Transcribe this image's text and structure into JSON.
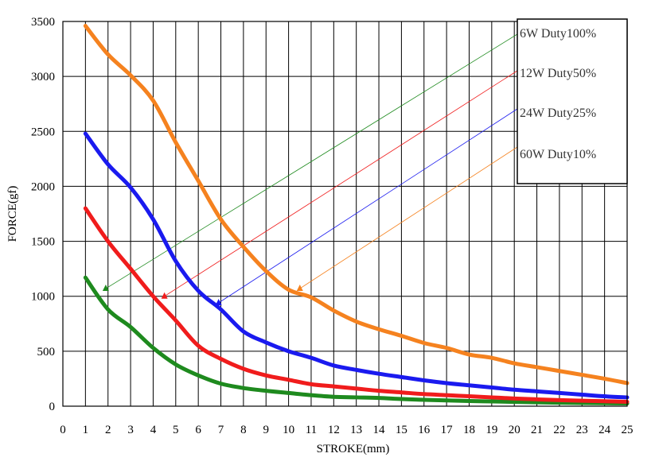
{
  "chart_data": {
    "type": "line",
    "xlabel": "STROKE(mm)",
    "ylabel": "FORCE(gf)",
    "xlim": [
      0,
      25
    ],
    "ylim": [
      0,
      3500
    ],
    "x_ticks": [
      "0",
      "1",
      "2",
      "3",
      "4",
      "5",
      "6",
      "7",
      "8",
      "9",
      "10",
      "11",
      "12",
      "13",
      "14",
      "15",
      "16",
      "17",
      "18",
      "19",
      "20",
      "21",
      "22",
      "23",
      "24",
      "25"
    ],
    "y_ticks": [
      "0",
      "500",
      "1000",
      "1500",
      "2000",
      "2500",
      "3000",
      "3500"
    ],
    "grid": true,
    "legend_position": "top-right",
    "series": [
      {
        "name": "6W Duty100%",
        "color": "#1e8a1e",
        "x": [
          1,
          2,
          3,
          4,
          5,
          6,
          7,
          8,
          9,
          10,
          11,
          12,
          13,
          14,
          15,
          16,
          17,
          18,
          19,
          20,
          21,
          22,
          23,
          24,
          25
        ],
        "y": [
          1170,
          880,
          720,
          530,
          380,
          280,
          205,
          165,
          140,
          120,
          100,
          85,
          80,
          75,
          65,
          58,
          52,
          47,
          43,
          39,
          35,
          32,
          29,
          27,
          25
        ]
      },
      {
        "name": "12W Duty50%",
        "color": "#f01c1c",
        "x": [
          1,
          2,
          3,
          4,
          5,
          6,
          7,
          8,
          9,
          10,
          11,
          12,
          13,
          14,
          15,
          16,
          17,
          18,
          19,
          20,
          21,
          22,
          23,
          24,
          25
        ],
        "y": [
          1800,
          1500,
          1250,
          1000,
          780,
          550,
          430,
          340,
          280,
          240,
          200,
          180,
          160,
          140,
          125,
          110,
          100,
          90,
          80,
          70,
          62,
          55,
          50,
          45,
          40
        ]
      },
      {
        "name": "24W Duty25%",
        "color": "#1a1aef",
        "x": [
          1,
          2,
          3,
          4,
          5,
          6,
          7,
          8,
          9,
          10,
          11,
          12,
          13,
          14,
          15,
          16,
          17,
          18,
          19,
          20,
          21,
          22,
          23,
          24,
          25
        ],
        "y": [
          2480,
          2200,
          1990,
          1700,
          1320,
          1050,
          880,
          680,
          580,
          500,
          440,
          370,
          330,
          295,
          265,
          235,
          210,
          190,
          170,
          150,
          135,
          120,
          105,
          90,
          80
        ]
      },
      {
        "name": "60W Duty10%",
        "color": "#f5821f",
        "x": [
          1,
          2,
          3,
          4,
          5,
          6,
          7,
          8,
          9,
          10,
          11,
          12,
          13,
          14,
          15,
          16,
          17,
          18,
          19,
          20,
          21,
          22,
          23,
          24,
          25
        ],
        "y": [
          3460,
          3200,
          3010,
          2780,
          2400,
          2050,
          1700,
          1450,
          1230,
          1060,
          990,
          870,
          770,
          700,
          640,
          575,
          530,
          470,
          440,
          390,
          355,
          320,
          285,
          250,
          210
        ]
      }
    ],
    "annotations": [
      {
        "series": 0,
        "at": [
          1.9,
          1070
        ]
      },
      {
        "series": 1,
        "at": [
          4.5,
          1000
        ]
      },
      {
        "series": 2,
        "at": [
          6.9,
          940
        ]
      },
      {
        "series": 3,
        "at": [
          10.5,
          1070
        ]
      }
    ]
  }
}
